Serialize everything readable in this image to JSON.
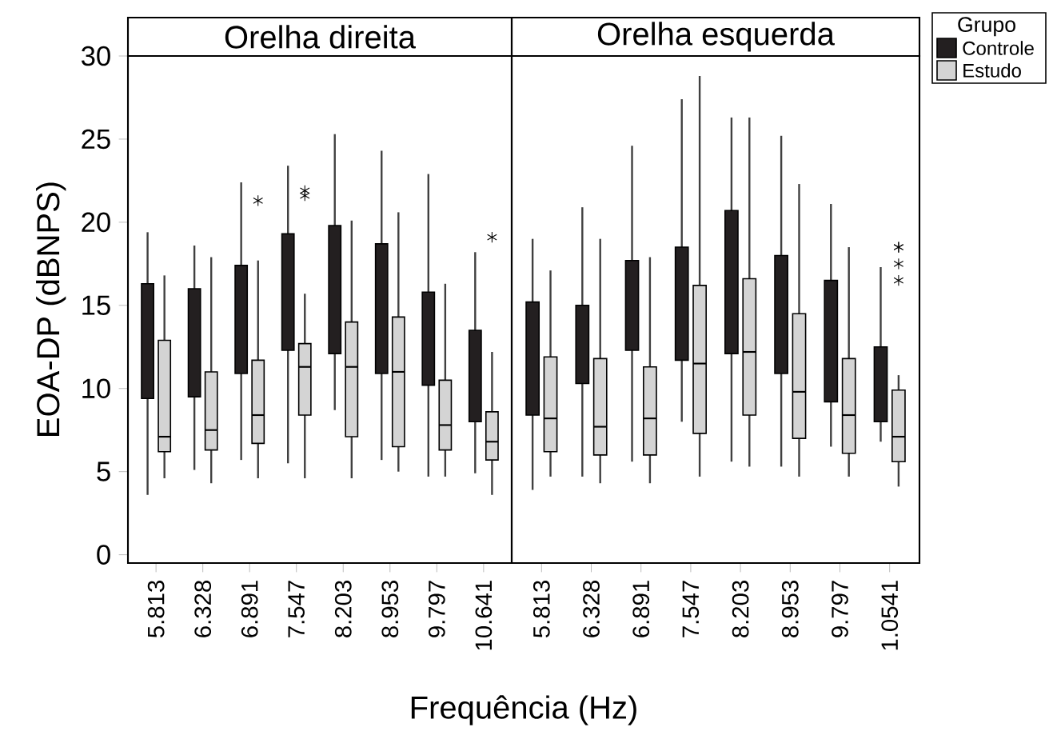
{
  "chart_data": [
    {
      "type": "box",
      "title": "Orelha direita",
      "ylabel": "EOA-DP (dBNPS)",
      "xlabel": "Frequência (Hz)",
      "categories": [
        "5.813",
        "6.328",
        "6.891",
        "7.547",
        "8.203",
        "8.953",
        "9.797",
        "10.641"
      ],
      "ylim": [
        -0.5,
        30
      ],
      "yticks": [
        0,
        5,
        10,
        15,
        20,
        25,
        30
      ],
      "series": [
        {
          "color": "#231f20",
          "boxes": [
            {
              "low": 3.6,
              "q1": 9.4,
              "median": null,
              "q3": 16.3,
              "high": 19.4
            },
            {
              "low": 5.1,
              "q1": 9.5,
              "median": null,
              "q3": 16.0,
              "high": 18.6
            },
            {
              "low": 5.7,
              "q1": 10.9,
              "median": null,
              "q3": 17.4,
              "high": 22.4
            },
            {
              "low": 5.5,
              "q1": 12.3,
              "median": null,
              "q3": 19.3,
              "high": 23.4
            },
            {
              "low": 8.7,
              "q1": 12.1,
              "median": null,
              "q3": 19.8,
              "high": 25.3
            },
            {
              "low": 5.7,
              "q1": 10.9,
              "median": null,
              "q3": 18.7,
              "high": 24.3
            },
            {
              "low": 4.7,
              "q1": 10.2,
              "median": null,
              "q3": 15.8,
              "high": 22.9
            },
            {
              "low": 4.9,
              "q1": 8.0,
              "median": null,
              "q3": 13.5,
              "high": 18.2
            }
          ]
        },
        {
          "color": "#d4d4d4",
          "boxes": [
            {
              "low": 4.6,
              "q1": 6.2,
              "median": 7.1,
              "q3": 12.9,
              "high": 16.8
            },
            {
              "low": 4.3,
              "q1": 6.3,
              "median": 7.5,
              "q3": 11.0,
              "high": 17.9
            },
            {
              "low": 4.6,
              "q1": 6.7,
              "median": 8.4,
              "q3": 11.7,
              "high": 17.7,
              "outliers": [
                21.3
              ]
            },
            {
              "low": 4.6,
              "q1": 8.4,
              "median": 11.3,
              "q3": 12.7,
              "high": 15.7,
              "outliers": [
                21.9,
                21.6
              ]
            },
            {
              "low": 4.6,
              "q1": 7.1,
              "median": 11.3,
              "q3": 14.0,
              "high": 20.1
            },
            {
              "low": 5.0,
              "q1": 6.5,
              "median": 11.0,
              "q3": 14.3,
              "high": 20.6
            },
            {
              "low": 4.7,
              "q1": 6.3,
              "median": 7.8,
              "q3": 10.5,
              "high": 16.3
            },
            {
              "low": 3.6,
              "q1": 5.7,
              "median": 6.8,
              "q3": 8.6,
              "high": 12.2,
              "outliers": [
                19.1
              ]
            }
          ]
        }
      ]
    },
    {
      "type": "box",
      "title": "Orelha esquerda",
      "tick_labels": "x",
      "legend": "right",
      "legend_title": "Grupo",
      "categories": [
        "5.813",
        "6.328",
        "6.891",
        "7.547",
        "8.203",
        "8.953",
        "9.797",
        "1.0541"
      ],
      "ylim": [
        -0.5,
        30
      ],
      "series": [
        {
          "name": "Controle",
          "color": "#231f20",
          "boxes": [
            {
              "low": 3.9,
              "q1": 8.4,
              "median": null,
              "q3": 15.2,
              "high": 19.0
            },
            {
              "low": 4.7,
              "q1": 10.3,
              "median": null,
              "q3": 15.0,
              "high": 20.9
            },
            {
              "low": 5.6,
              "q1": 12.3,
              "median": null,
              "q3": 17.7,
              "high": 24.6
            },
            {
              "low": 8.0,
              "q1": 11.7,
              "median": null,
              "q3": 18.5,
              "high": 27.4
            },
            {
              "low": 5.6,
              "q1": 12.1,
              "median": null,
              "q3": 20.7,
              "high": 26.3
            },
            {
              "low": 5.3,
              "q1": 10.9,
              "median": null,
              "q3": 18.0,
              "high": 25.2
            },
            {
              "low": 6.5,
              "q1": 9.2,
              "median": null,
              "q3": 16.5,
              "high": 21.1
            },
            {
              "low": 6.8,
              "q1": 8.0,
              "median": null,
              "q3": 12.5,
              "high": 17.3
            }
          ]
        },
        {
          "name": "Estudo",
          "color": "#d4d4d4",
          "boxes": [
            {
              "low": 4.7,
              "q1": 6.2,
              "median": 8.2,
              "q3": 11.9,
              "high": 17.1
            },
            {
              "low": 4.3,
              "q1": 6.0,
              "median": 7.7,
              "q3": 11.8,
              "high": 19.0
            },
            {
              "low": 4.3,
              "q1": 6.0,
              "median": 8.2,
              "q3": 11.3,
              "high": 17.9
            },
            {
              "low": 4.7,
              "q1": 7.3,
              "median": 11.5,
              "q3": 16.2,
              "high": 28.8
            },
            {
              "low": 5.3,
              "q1": 8.4,
              "median": 12.2,
              "q3": 16.6,
              "high": 26.3
            },
            {
              "low": 4.7,
              "q1": 7.0,
              "median": 9.8,
              "q3": 14.5,
              "high": 22.3
            },
            {
              "low": 4.7,
              "q1": 6.1,
              "median": 8.4,
              "q3": 11.8,
              "high": 18.5
            },
            {
              "low": 4.1,
              "q1": 5.6,
              "median": 7.1,
              "q3": 9.9,
              "high": 10.8,
              "outliers": [
                18.5,
                18.5,
                17.5,
                16.5
              ]
            }
          ]
        }
      ]
    }
  ]
}
